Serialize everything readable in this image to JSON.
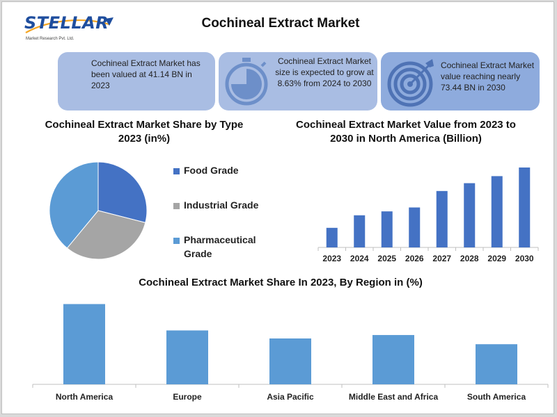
{
  "brand": {
    "name": "STELLAR",
    "subtitle": "Market Research Pvt. Ltd."
  },
  "title": "Cochineal Extract Market",
  "cards": [
    {
      "text": "Cochineal Extract Market has been valued at 41.14 BN in 2023",
      "icon": "image-icon"
    },
    {
      "text": "Cochineal Extract Market size is expected to grow at 8.63% from 2024 to 2030",
      "icon": "stopwatch-icon"
    },
    {
      "text": "Cochineal Extract Market value reaching nearly 73.44 BN in 2030",
      "icon": "target-icon"
    }
  ],
  "colors": {
    "food": "#4472c4",
    "industrial": "#a5a5a5",
    "pharma": "#5b9bd5",
    "card": "#a9bde3"
  },
  "chart_data": [
    {
      "type": "pie",
      "title": "Cochineal Extract Market  Share by Type 2023 (in%)",
      "categories": [
        "Food Grade",
        "Industrial Grade",
        "Pharmaceutical Grade"
      ],
      "values": [
        29,
        32,
        39
      ],
      "colors": [
        "#4472c4",
        "#a5a5a5",
        "#5b9bd5"
      ],
      "legend": "right"
    },
    {
      "type": "bar",
      "title": "Cochineal Extract Market  Value from 2023 to 2030 in North America (Billion)",
      "categories": [
        "2023",
        "2024",
        "2025",
        "2026",
        "2027",
        "2028",
        "2029",
        "2030"
      ],
      "values": [
        2.5,
        4.1,
        4.6,
        5.1,
        7.2,
        8.2,
        9.1,
        10.2
      ],
      "ylim": [
        0,
        11
      ],
      "color": "#4472c4"
    },
    {
      "type": "bar",
      "title": "Cochineal Extract Market  Share In 2023, By Region in (%)",
      "categories": [
        "North America",
        "Europe",
        "Asia Pacific",
        "Middle East and Africa",
        "South America"
      ],
      "values": [
        35,
        23.5,
        20,
        21.5,
        17.5
      ],
      "ylim": [
        0,
        40
      ],
      "color": "#5b9bd5"
    }
  ]
}
